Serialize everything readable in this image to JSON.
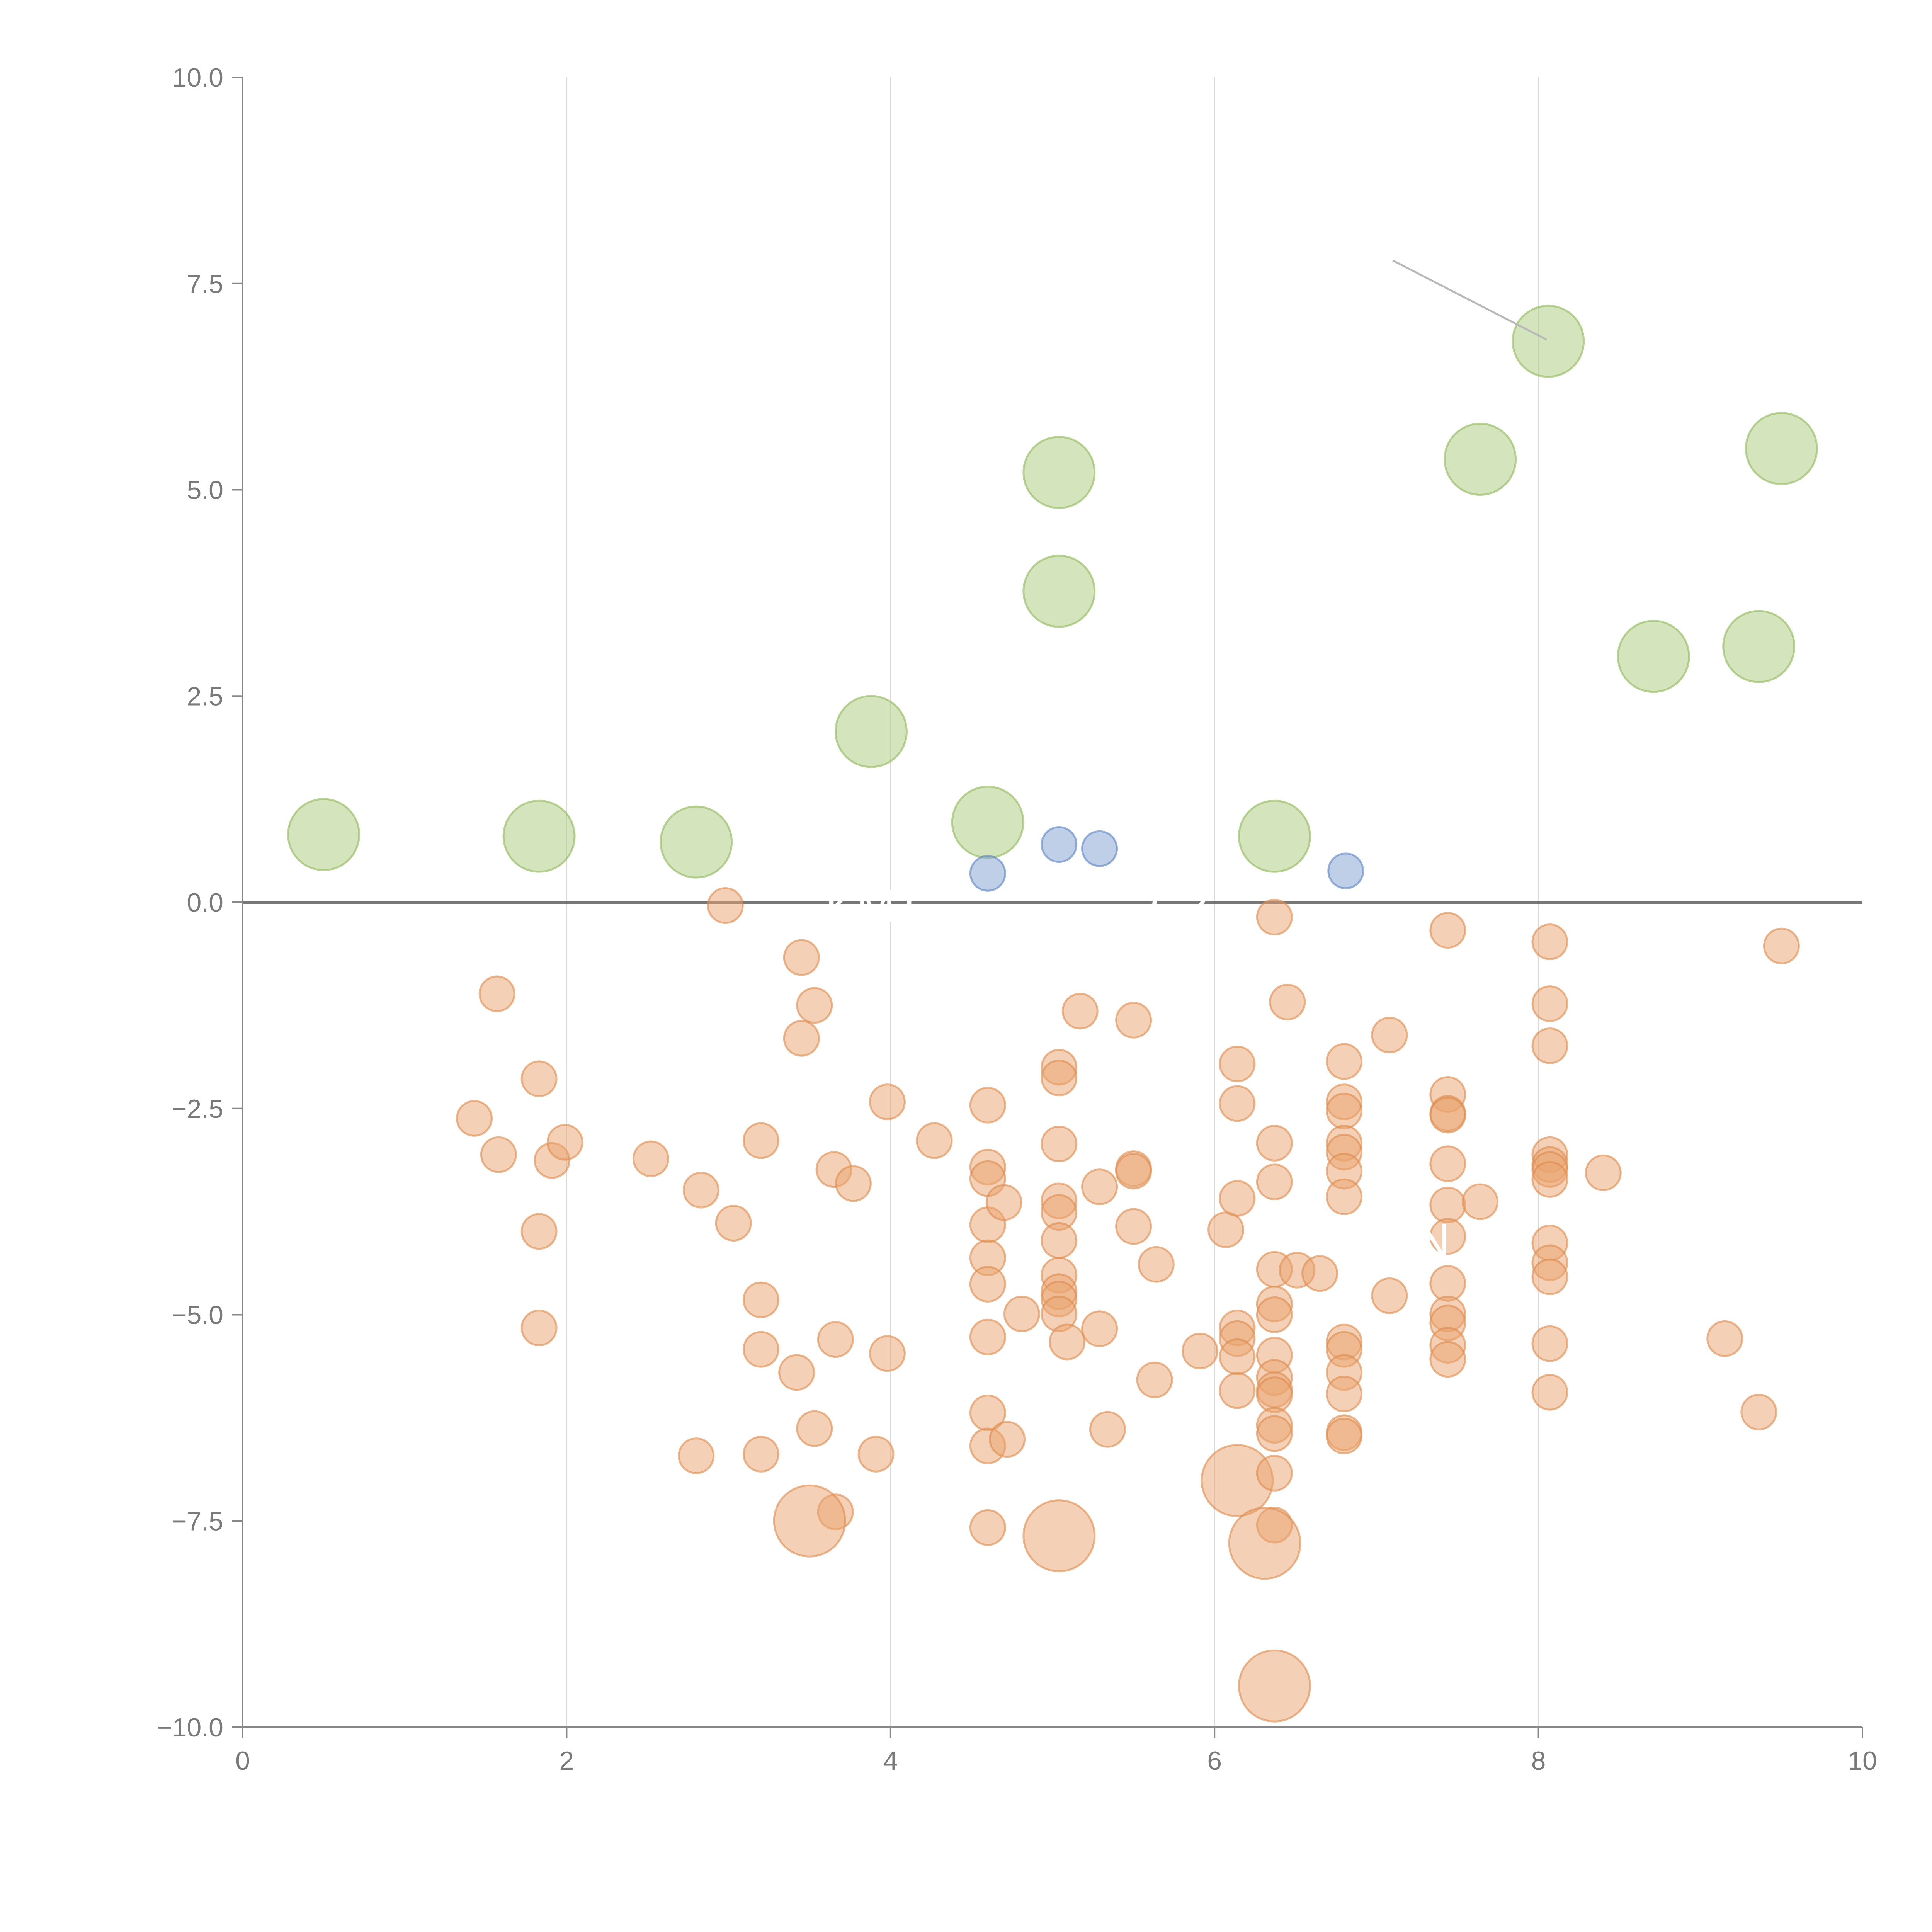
{
  "chart_data": {
    "type": "scatter",
    "bubble": true,
    "title": "",
    "xlabel": "",
    "ylabel": "",
    "xlim": [
      0,
      10
    ],
    "ylim": [
      -10,
      10
    ],
    "x_ticks": [
      "0",
      "2",
      "4",
      "6",
      "8",
      "10"
    ],
    "x_tick_values": [
      0,
      2,
      4,
      6,
      8,
      10
    ],
    "y_ticks": [
      "10.0",
      "7.5",
      "5.0",
      "2.5",
      "0.0",
      "−2.5",
      "−5.0",
      "−7.5",
      "−10.0"
    ],
    "y_tick_values": [
      10,
      7.5,
      5,
      2.5,
      0,
      -2.5,
      -5,
      -7.5,
      -10
    ],
    "grid": {
      "vertical": true,
      "horizontal": false
    },
    "zero_line": true,
    "annotations": [
      {
        "text": "KMT",
        "x": 3.9,
        "y": -0.05
      },
      {
        "text": "GZ",
        "x": 5.8,
        "y": -0.05
      },
      {
        "text": "N",
        "x": 7.35,
        "y": -4.1
      }
    ],
    "leader_lines": [
      {
        "x1": 7.1,
        "y1": 7.78,
        "x2": 8.05,
        "y2": 6.82
      }
    ],
    "series": [
      {
        "color": "#a9c97a",
        "edge": "#8fb85a",
        "points": [
          [
            0.5,
            0.82,
            3
          ],
          [
            1.83,
            0.8,
            3
          ],
          [
            2.8,
            0.73,
            3
          ],
          [
            3.88,
            2.07,
            3
          ],
          [
            4.6,
            0.97,
            3
          ],
          [
            5.04,
            3.77,
            3
          ],
          [
            5.04,
            5.21,
            3
          ],
          [
            6.37,
            0.8,
            3
          ],
          [
            7.64,
            5.37,
            3
          ],
          [
            8.06,
            6.8,
            3
          ],
          [
            8.71,
            2.98,
            3
          ],
          [
            9.36,
            3.1,
            3
          ],
          [
            9.5,
            5.5,
            3
          ]
        ]
      },
      {
        "color": "#7f9fd2",
        "edge": "#5c82c2",
        "points": [
          [
            4.6,
            0.35,
            1
          ],
          [
            5.04,
            0.7,
            1
          ],
          [
            5.29,
            0.65,
            1
          ],
          [
            6.81,
            0.38,
            1
          ]
        ]
      },
      {
        "color": "#eaa36e",
        "edge": "#dc8a4c",
        "points": [
          [
            2.98,
            -0.04,
            1
          ],
          [
            1.57,
            -1.11,
            1
          ],
          [
            1.83,
            -2.14,
            1
          ],
          [
            1.43,
            -2.62,
            1
          ],
          [
            1.58,
            -3.06,
            1
          ],
          [
            1.91,
            -3.13,
            1
          ],
          [
            1.99,
            -2.91,
            1
          ],
          [
            1.83,
            -3.99,
            1
          ],
          [
            1.83,
            -5.16,
            1
          ],
          [
            2.52,
            -3.11,
            1
          ],
          [
            2.83,
            -3.49,
            1
          ],
          [
            3.03,
            -3.89,
            1
          ],
          [
            3.2,
            -2.89,
            1
          ],
          [
            3.2,
            -4.82,
            1
          ],
          [
            3.2,
            -5.42,
            1
          ],
          [
            3.2,
            -6.69,
            1
          ],
          [
            2.8,
            -6.71,
            1
          ],
          [
            3.42,
            -5.7,
            1
          ],
          [
            3.45,
            -0.67,
            1
          ],
          [
            3.53,
            -1.25,
            1
          ],
          [
            3.45,
            -1.65,
            1
          ],
          [
            3.65,
            -3.24,
            1
          ],
          [
            3.77,
            -3.41,
            1
          ],
          [
            3.66,
            -5.3,
            1
          ],
          [
            3.53,
            -6.38,
            1
          ],
          [
            3.66,
            -7.39,
            1
          ],
          [
            3.5,
            -7.5,
            3
          ],
          [
            3.98,
            -2.42,
            1
          ],
          [
            3.98,
            -5.47,
            1
          ],
          [
            3.91,
            -6.69,
            1
          ],
          [
            4.27,
            -2.89,
            1
          ],
          [
            4.6,
            -2.46,
            1
          ],
          [
            4.6,
            -3.21,
            1
          ],
          [
            4.6,
            -3.35,
            1
          ],
          [
            4.6,
            -3.91,
            1
          ],
          [
            4.6,
            -4.31,
            1
          ],
          [
            4.6,
            -4.63,
            1
          ],
          [
            4.6,
            -5.27,
            1
          ],
          [
            4.6,
            -6.19,
            1
          ],
          [
            4.6,
            -6.59,
            1
          ],
          [
            4.6,
            -7.58,
            1
          ],
          [
            4.7,
            -3.64,
            1
          ],
          [
            4.72,
            -6.51,
            1
          ],
          [
            4.81,
            -4.99,
            1
          ],
          [
            5.04,
            -2.0,
            1
          ],
          [
            5.04,
            -2.13,
            1
          ],
          [
            5.04,
            -2.93,
            1
          ],
          [
            5.04,
            -3.62,
            1
          ],
          [
            5.04,
            -3.76,
            1
          ],
          [
            5.04,
            -4.1,
            1
          ],
          [
            5.04,
            -4.52,
            1
          ],
          [
            5.04,
            -4.72,
            1
          ],
          [
            5.04,
            -4.81,
            1
          ],
          [
            5.04,
            -4.99,
            1
          ],
          [
            5.09,
            -5.33,
            1
          ],
          [
            5.04,
            -7.68,
            3
          ],
          [
            5.17,
            -1.32,
            1
          ],
          [
            5.29,
            -3.45,
            1
          ],
          [
            5.29,
            -5.17,
            1
          ],
          [
            5.34,
            -6.39,
            1
          ],
          [
            5.5,
            -1.43,
            1
          ],
          [
            5.5,
            -3.23,
            1
          ],
          [
            5.5,
            -3.26,
            1
          ],
          [
            5.5,
            -3.93,
            1
          ],
          [
            5.64,
            -4.39,
            1
          ],
          [
            5.63,
            -5.79,
            1
          ],
          [
            5.91,
            -5.44,
            1
          ],
          [
            6.07,
            -3.97,
            1
          ],
          [
            6.14,
            -1.96,
            1
          ],
          [
            6.14,
            -2.44,
            1
          ],
          [
            6.14,
            -3.59,
            1
          ],
          [
            6.14,
            -5.16,
            1
          ],
          [
            6.14,
            -5.29,
            1
          ],
          [
            6.14,
            -5.51,
            1
          ],
          [
            6.14,
            -5.92,
            1
          ],
          [
            6.14,
            -7.01,
            3
          ],
          [
            6.37,
            -0.18,
            1
          ],
          [
            6.37,
            -2.92,
            1
          ],
          [
            6.37,
            -3.39,
            1
          ],
          [
            6.37,
            -4.45,
            1
          ],
          [
            6.37,
            -4.87,
            1
          ],
          [
            6.37,
            -5.0,
            1
          ],
          [
            6.37,
            -5.49,
            1
          ],
          [
            6.37,
            -5.76,
            1
          ],
          [
            6.37,
            -5.91,
            1
          ],
          [
            6.37,
            -5.97,
            1
          ],
          [
            6.37,
            -6.34,
            1
          ],
          [
            6.37,
            -6.44,
            1
          ],
          [
            6.37,
            -6.92,
            1
          ],
          [
            6.37,
            -7.55,
            1
          ],
          [
            6.31,
            -7.77,
            3
          ],
          [
            6.37,
            -9.5,
            3
          ],
          [
            6.45,
            -1.21,
            1
          ],
          [
            6.51,
            -4.46,
            1
          ],
          [
            6.65,
            -4.5,
            1
          ],
          [
            6.8,
            -1.93,
            1
          ],
          [
            6.8,
            -2.42,
            1
          ],
          [
            6.8,
            -2.53,
            1
          ],
          [
            6.8,
            -2.92,
            1
          ],
          [
            6.8,
            -3.03,
            1
          ],
          [
            6.8,
            -3.26,
            1
          ],
          [
            6.8,
            -3.57,
            1
          ],
          [
            6.8,
            -5.33,
            1
          ],
          [
            6.8,
            -5.42,
            1
          ],
          [
            6.8,
            -5.7,
            1
          ],
          [
            6.8,
            -5.96,
            1
          ],
          [
            6.8,
            -6.43,
            1
          ],
          [
            6.8,
            -6.47,
            1
          ],
          [
            7.08,
            -1.61,
            1
          ],
          [
            7.08,
            -4.77,
            1
          ],
          [
            7.44,
            -0.34,
            1
          ],
          [
            7.44,
            -2.33,
            1
          ],
          [
            7.44,
            -2.56,
            1
          ],
          [
            7.44,
            -2.58,
            1
          ],
          [
            7.44,
            -3.17,
            1
          ],
          [
            7.44,
            -3.67,
            1
          ],
          [
            7.44,
            -4.05,
            1
          ],
          [
            7.44,
            -4.62,
            1
          ],
          [
            7.44,
            -4.99,
            1
          ],
          [
            7.44,
            -5.1,
            1
          ],
          [
            7.44,
            -5.37,
            1
          ],
          [
            7.44,
            -5.54,
            1
          ],
          [
            7.64,
            -3.63,
            1
          ],
          [
            8.07,
            -0.48,
            1
          ],
          [
            8.07,
            -1.23,
            1
          ],
          [
            8.07,
            -1.74,
            1
          ],
          [
            8.07,
            -3.06,
            1
          ],
          [
            8.07,
            -3.18,
            1
          ],
          [
            8.07,
            -3.24,
            1
          ],
          [
            8.07,
            -3.36,
            1
          ],
          [
            8.07,
            -4.13,
            1
          ],
          [
            8.07,
            -4.37,
            1
          ],
          [
            8.07,
            -4.54,
            1
          ],
          [
            8.07,
            -5.35,
            1
          ],
          [
            8.07,
            -5.94,
            1
          ],
          [
            8.4,
            -3.28,
            1
          ],
          [
            9.15,
            -5.29,
            1
          ],
          [
            9.36,
            -6.18,
            1
          ],
          [
            9.5,
            -0.53,
            1
          ]
        ]
      }
    ]
  }
}
